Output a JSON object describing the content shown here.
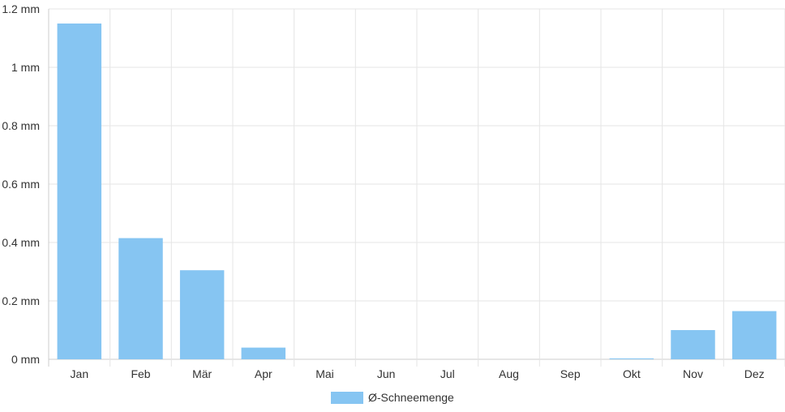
{
  "chart_data": {
    "type": "bar",
    "categories": [
      "Jan",
      "Feb",
      "Mär",
      "Apr",
      "Mai",
      "Jun",
      "Jul",
      "Aug",
      "Sep",
      "Okt",
      "Nov",
      "Dez"
    ],
    "series": [
      {
        "name": "Ø-Schneemenge",
        "values": [
          1.15,
          0.415,
          0.305,
          0.04,
          0,
          0,
          0,
          0,
          0,
          0.003,
          0.1,
          0.165
        ],
        "color": "#86c5f2"
      }
    ],
    "ylim": [
      0,
      1.2
    ],
    "y_ticks": [
      "0 mm",
      "0.2 mm",
      "0.4 mm",
      "0.6 mm",
      "0.8 mm",
      "1 mm",
      "1.2 mm"
    ],
    "grid": true,
    "legend_position": "bottom-center",
    "colors": {
      "grid": "#e5e5e5",
      "axis": "#cccccc",
      "text": "#333333"
    }
  }
}
